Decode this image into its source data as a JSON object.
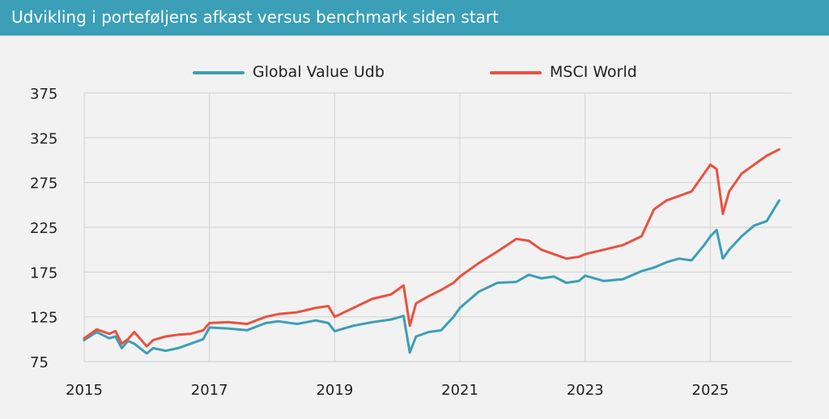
{
  "header": {
    "title": "Udvikling i porteføljens afkast versus benchmark siden start",
    "bg_color": "#3a9fb7"
  },
  "chart_data": {
    "type": "line",
    "title": "Udvikling i porteføljens afkast versus benchmark siden start",
    "xlabel": "",
    "ylabel": "",
    "xlim": [
      2015,
      2026.3
    ],
    "ylim": [
      75,
      375
    ],
    "x_ticks": [
      "2015",
      "2017",
      "2019",
      "2021",
      "2023",
      "2025"
    ],
    "x_tick_values": [
      2015,
      2017,
      2019,
      2021,
      2023,
      2025
    ],
    "y_ticks": [
      "375",
      "325",
      "275",
      "225",
      "175",
      "125",
      "75"
    ],
    "y_tick_values": [
      375,
      325,
      275,
      225,
      175,
      125,
      75
    ],
    "grid": true,
    "legend": "top-center",
    "series": [
      {
        "name": "Global Value Udb",
        "color": "#3a9fb7",
        "x": [
          2015.0,
          2015.2,
          2015.4,
          2015.5,
          2015.6,
          2015.7,
          2015.8,
          2016.0,
          2016.1,
          2016.3,
          2016.5,
          2016.7,
          2016.9,
          2017.0,
          2017.3,
          2017.6,
          2017.9,
          2018.1,
          2018.4,
          2018.7,
          2018.9,
          2019.0,
          2019.3,
          2019.6,
          2019.9,
          2020.1,
          2020.2,
          2020.3,
          2020.5,
          2020.7,
          2020.9,
          2021.0,
          2021.3,
          2021.6,
          2021.9,
          2022.1,
          2022.3,
          2022.5,
          2022.7,
          2022.9,
          2023.0,
          2023.3,
          2023.6,
          2023.9,
          2024.1,
          2024.3,
          2024.5,
          2024.7,
          2024.9,
          2025.0,
          2025.1,
          2025.2,
          2025.3,
          2025.5,
          2025.7,
          2025.9,
          2026.1
        ],
        "values": [
          99,
          108,
          101,
          103,
          90,
          98,
          95,
          84,
          90,
          87,
          90,
          95,
          100,
          113,
          112,
          110,
          118,
          120,
          117,
          121,
          118,
          109,
          115,
          119,
          122,
          126,
          85,
          103,
          108,
          110,
          125,
          135,
          153,
          163,
          164,
          172,
          168,
          170,
          163,
          165,
          171,
          165,
          167,
          176,
          180,
          186,
          190,
          188,
          205,
          215,
          222,
          190,
          200,
          215,
          227,
          232,
          255
        ]
      },
      {
        "name": "MSCI World",
        "color": "#e8523f",
        "x": [
          2015.0,
          2015.2,
          2015.4,
          2015.5,
          2015.6,
          2015.7,
          2015.8,
          2016.0,
          2016.1,
          2016.3,
          2016.5,
          2016.7,
          2016.9,
          2017.0,
          2017.3,
          2017.6,
          2017.9,
          2018.1,
          2018.4,
          2018.7,
          2018.9,
          2019.0,
          2019.3,
          2019.6,
          2019.9,
          2020.1,
          2020.2,
          2020.3,
          2020.5,
          2020.7,
          2020.9,
          2021.0,
          2021.3,
          2021.6,
          2021.9,
          2022.1,
          2022.3,
          2022.5,
          2022.7,
          2022.9,
          2023.0,
          2023.3,
          2023.6,
          2023.9,
          2024.1,
          2024.3,
          2024.5,
          2024.7,
          2024.9,
          2025.0,
          2025.1,
          2025.2,
          2025.3,
          2025.5,
          2025.7,
          2025.9,
          2026.1
        ],
        "values": [
          101,
          111,
          106,
          109,
          95,
          100,
          108,
          92,
          99,
          103,
          105,
          106,
          110,
          118,
          119,
          117,
          125,
          128,
          130,
          135,
          137,
          125,
          135,
          145,
          150,
          160,
          115,
          140,
          148,
          155,
          163,
          170,
          185,
          198,
          212,
          210,
          200,
          195,
          190,
          192,
          195,
          200,
          205,
          215,
          245,
          255,
          260,
          265,
          285,
          295,
          290,
          240,
          265,
          285,
          295,
          305,
          312
        ]
      }
    ]
  }
}
